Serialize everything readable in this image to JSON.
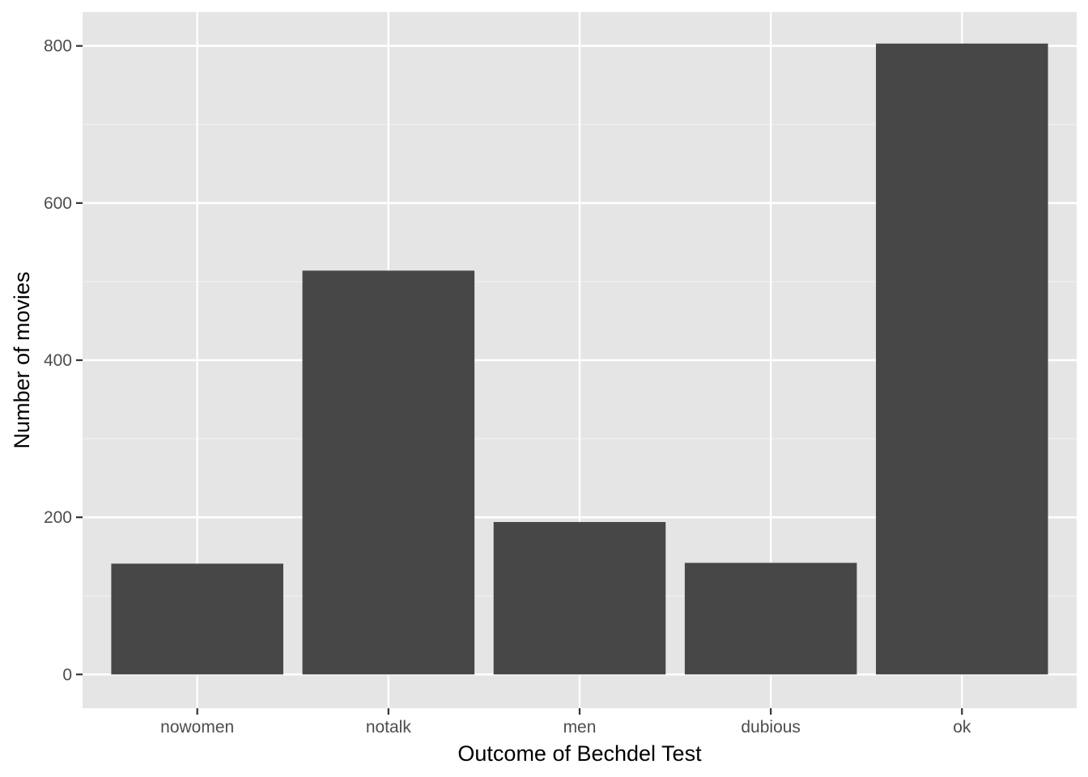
{
  "chart_data": {
    "type": "bar",
    "title": "",
    "xlabel": "Outcome of Bechdel Test",
    "ylabel": "Number of movies",
    "categories": [
      "nowomen",
      "notalk",
      "men",
      "dubious",
      "ok"
    ],
    "values": [
      141,
      514,
      194,
      142,
      803
    ],
    "ylim": [
      -43,
      843
    ],
    "yticks": [
      0,
      200,
      400,
      600,
      800
    ],
    "yticks_minor": [
      100,
      300,
      500,
      700
    ],
    "grid": true,
    "legend": "none",
    "colors": {
      "bar": "#474747",
      "panel_background": "#e5e5e5",
      "grid_major": "#ffffff",
      "grid_minor": "#f2f2f2",
      "tick_mark": "#333333"
    }
  }
}
